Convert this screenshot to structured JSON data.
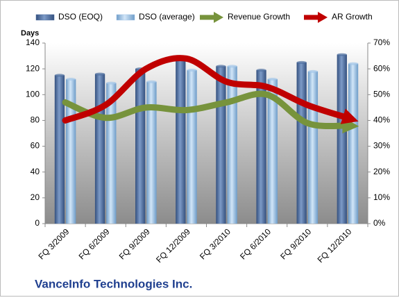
{
  "chart_data": {
    "type": "bar-line",
    "y_label": "Days",
    "footer": "VanceInfo Technologies Inc.",
    "categories": [
      "FQ 3/2009",
      "FQ 6/2009",
      "FQ 9/2009",
      "FQ 12/2009",
      "FQ 3/2010",
      "FQ 6/2010",
      "FQ 9/2010",
      "FQ 12/2010"
    ],
    "series": [
      {
        "name": "DSO (EOQ)",
        "color": "#4f6fa0",
        "kind": "bar",
        "values": [
          115,
          116,
          120,
          128,
          122,
          119,
          125,
          131
        ]
      },
      {
        "name": "DSO (average)",
        "color": "#a3c6e8",
        "kind": "bar",
        "values": [
          112,
          109,
          110,
          119,
          122,
          112,
          118,
          124
        ]
      },
      {
        "name": "Revenue Growth",
        "color": "#77933c",
        "kind": "line",
        "axis": "y2",
        "values": [
          47,
          41,
          45,
          44,
          47,
          50,
          39,
          38
        ]
      },
      {
        "name": "AR Growth",
        "color": "#c00000",
        "kind": "line",
        "axis": "y2",
        "values": [
          40,
          46,
          60,
          64,
          55,
          53,
          46,
          41
        ]
      }
    ],
    "ylim": [
      0,
      140
    ],
    "yticks": [
      0,
      20,
      40,
      60,
      80,
      100,
      120,
      140
    ],
    "y2lim": [
      0,
      70
    ],
    "y2ticks": [
      {
        "value": 0,
        "label": "0%"
      },
      {
        "value": 10,
        "label": "10%"
      },
      {
        "value": 20,
        "label": "20%"
      },
      {
        "value": 30,
        "label": "30%"
      },
      {
        "value": 40,
        "label": "40%"
      },
      {
        "value": 50,
        "label": "50%"
      },
      {
        "value": 60,
        "label": "60%"
      },
      {
        "value": 70,
        "label": "70%"
      }
    ],
    "grid": false,
    "legend": "top"
  }
}
